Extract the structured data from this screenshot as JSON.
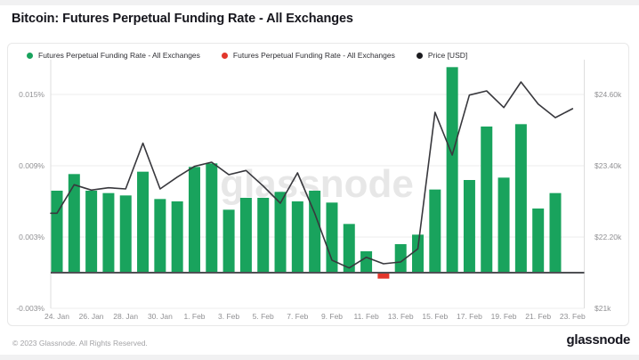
{
  "page": {
    "title": "Bitcoin: Futures Perpetual Funding Rate - All Exchanges",
    "watermark": "glassnode",
    "footer_copyright": "© 2023 Glassnode. All Rights Reserved.",
    "footer_logo": "glassnode"
  },
  "legend": [
    {
      "label": "Futures Perpetual Funding Rate - All Exchanges",
      "color": "#19a35d",
      "name": "legend-item-funding-positive"
    },
    {
      "label": "Futures Perpetual Funding Rate - All Exchanges",
      "color": "#e2362b",
      "name": "legend-item-funding-negative"
    },
    {
      "label": "Price [USD]",
      "color": "#1b1b1f",
      "name": "legend-item-price"
    }
  ],
  "chart_data": {
    "type": "combo-bar-line",
    "dates": [
      "24. Jan",
      "25. Jan",
      "26. Jan",
      "27. Jan",
      "28. Jan",
      "29. Jan",
      "30. Jan",
      "31. Jan",
      "1. Feb",
      "2. Feb",
      "3. Feb",
      "4. Feb",
      "5. Feb",
      "6. Feb",
      "7. Feb",
      "8. Feb",
      "9. Feb",
      "10. Feb",
      "11. Feb",
      "12. Feb",
      "13. Feb",
      "14. Feb",
      "15. Feb",
      "16. Feb",
      "17. Feb",
      "18. Feb",
      "19. Feb",
      "20. Feb",
      "21. Feb",
      "22. Feb",
      "23. Feb"
    ],
    "x_tick_labels": [
      "24. Jan",
      "26. Jan",
      "28. Jan",
      "30. Jan",
      "1. Feb",
      "3. Feb",
      "5. Feb",
      "7. Feb",
      "9. Feb",
      "11. Feb",
      "13. Feb",
      "15. Feb",
      "17. Feb",
      "19. Feb",
      "21. Feb",
      "23. Feb"
    ],
    "series": [
      {
        "name": "Futures Perpetual Funding Rate - All Exchanges",
        "type": "bar",
        "unit": "percent",
        "color_positive": "#19a35d",
        "color_negative": "#e2362b",
        "values": [
          0.0069,
          0.0083,
          0.0069,
          0.0067,
          0.0065,
          0.0085,
          0.0062,
          0.006,
          0.0089,
          0.0092,
          0.0053,
          0.0063,
          0.0063,
          0.0068,
          0.006,
          0.0069,
          0.0059,
          0.0041,
          0.0018,
          -0.0005,
          0.0024,
          0.0032,
          0.007,
          0.0173,
          0.0078,
          0.0123,
          0.008,
          0.0125,
          0.0054,
          0.0067,
          null
        ]
      },
      {
        "name": "Price [USD]",
        "type": "line",
        "unit": "USD_thousands",
        "color": "#38383d",
        "values": [
          22.6,
          23.08,
          22.99,
          23.03,
          23.01,
          23.78,
          23.01,
          23.21,
          23.39,
          23.46,
          23.25,
          23.32,
          23.06,
          22.77,
          23.28,
          22.6,
          21.81,
          21.68,
          21.86,
          21.75,
          21.78,
          22.0,
          24.3,
          23.58,
          24.59,
          24.66,
          24.38,
          24.81,
          24.44,
          24.21,
          24.36
        ]
      }
    ],
    "left_axis": {
      "tick_labels": [
        "0.015%",
        "0.009%",
        "0.003%",
        "-0.003%"
      ],
      "tick_values": [
        0.015,
        0.009,
        0.003,
        -0.003
      ],
      "zero_line": 0
    },
    "right_axis": {
      "tick_labels": [
        "$24.60k",
        "$23.40k",
        "$22.20k",
        "$21k"
      ],
      "tick_values": [
        24.6,
        23.4,
        22.2,
        21.0
      ]
    },
    "grid": "horizontal",
    "legend_position": "top"
  },
  "colors": {
    "grid": "#ededed",
    "axis_line": "#dedede",
    "zero_line": "#4f5054",
    "tick_text": "#909093",
    "watermark": "#e7e7e7"
  }
}
